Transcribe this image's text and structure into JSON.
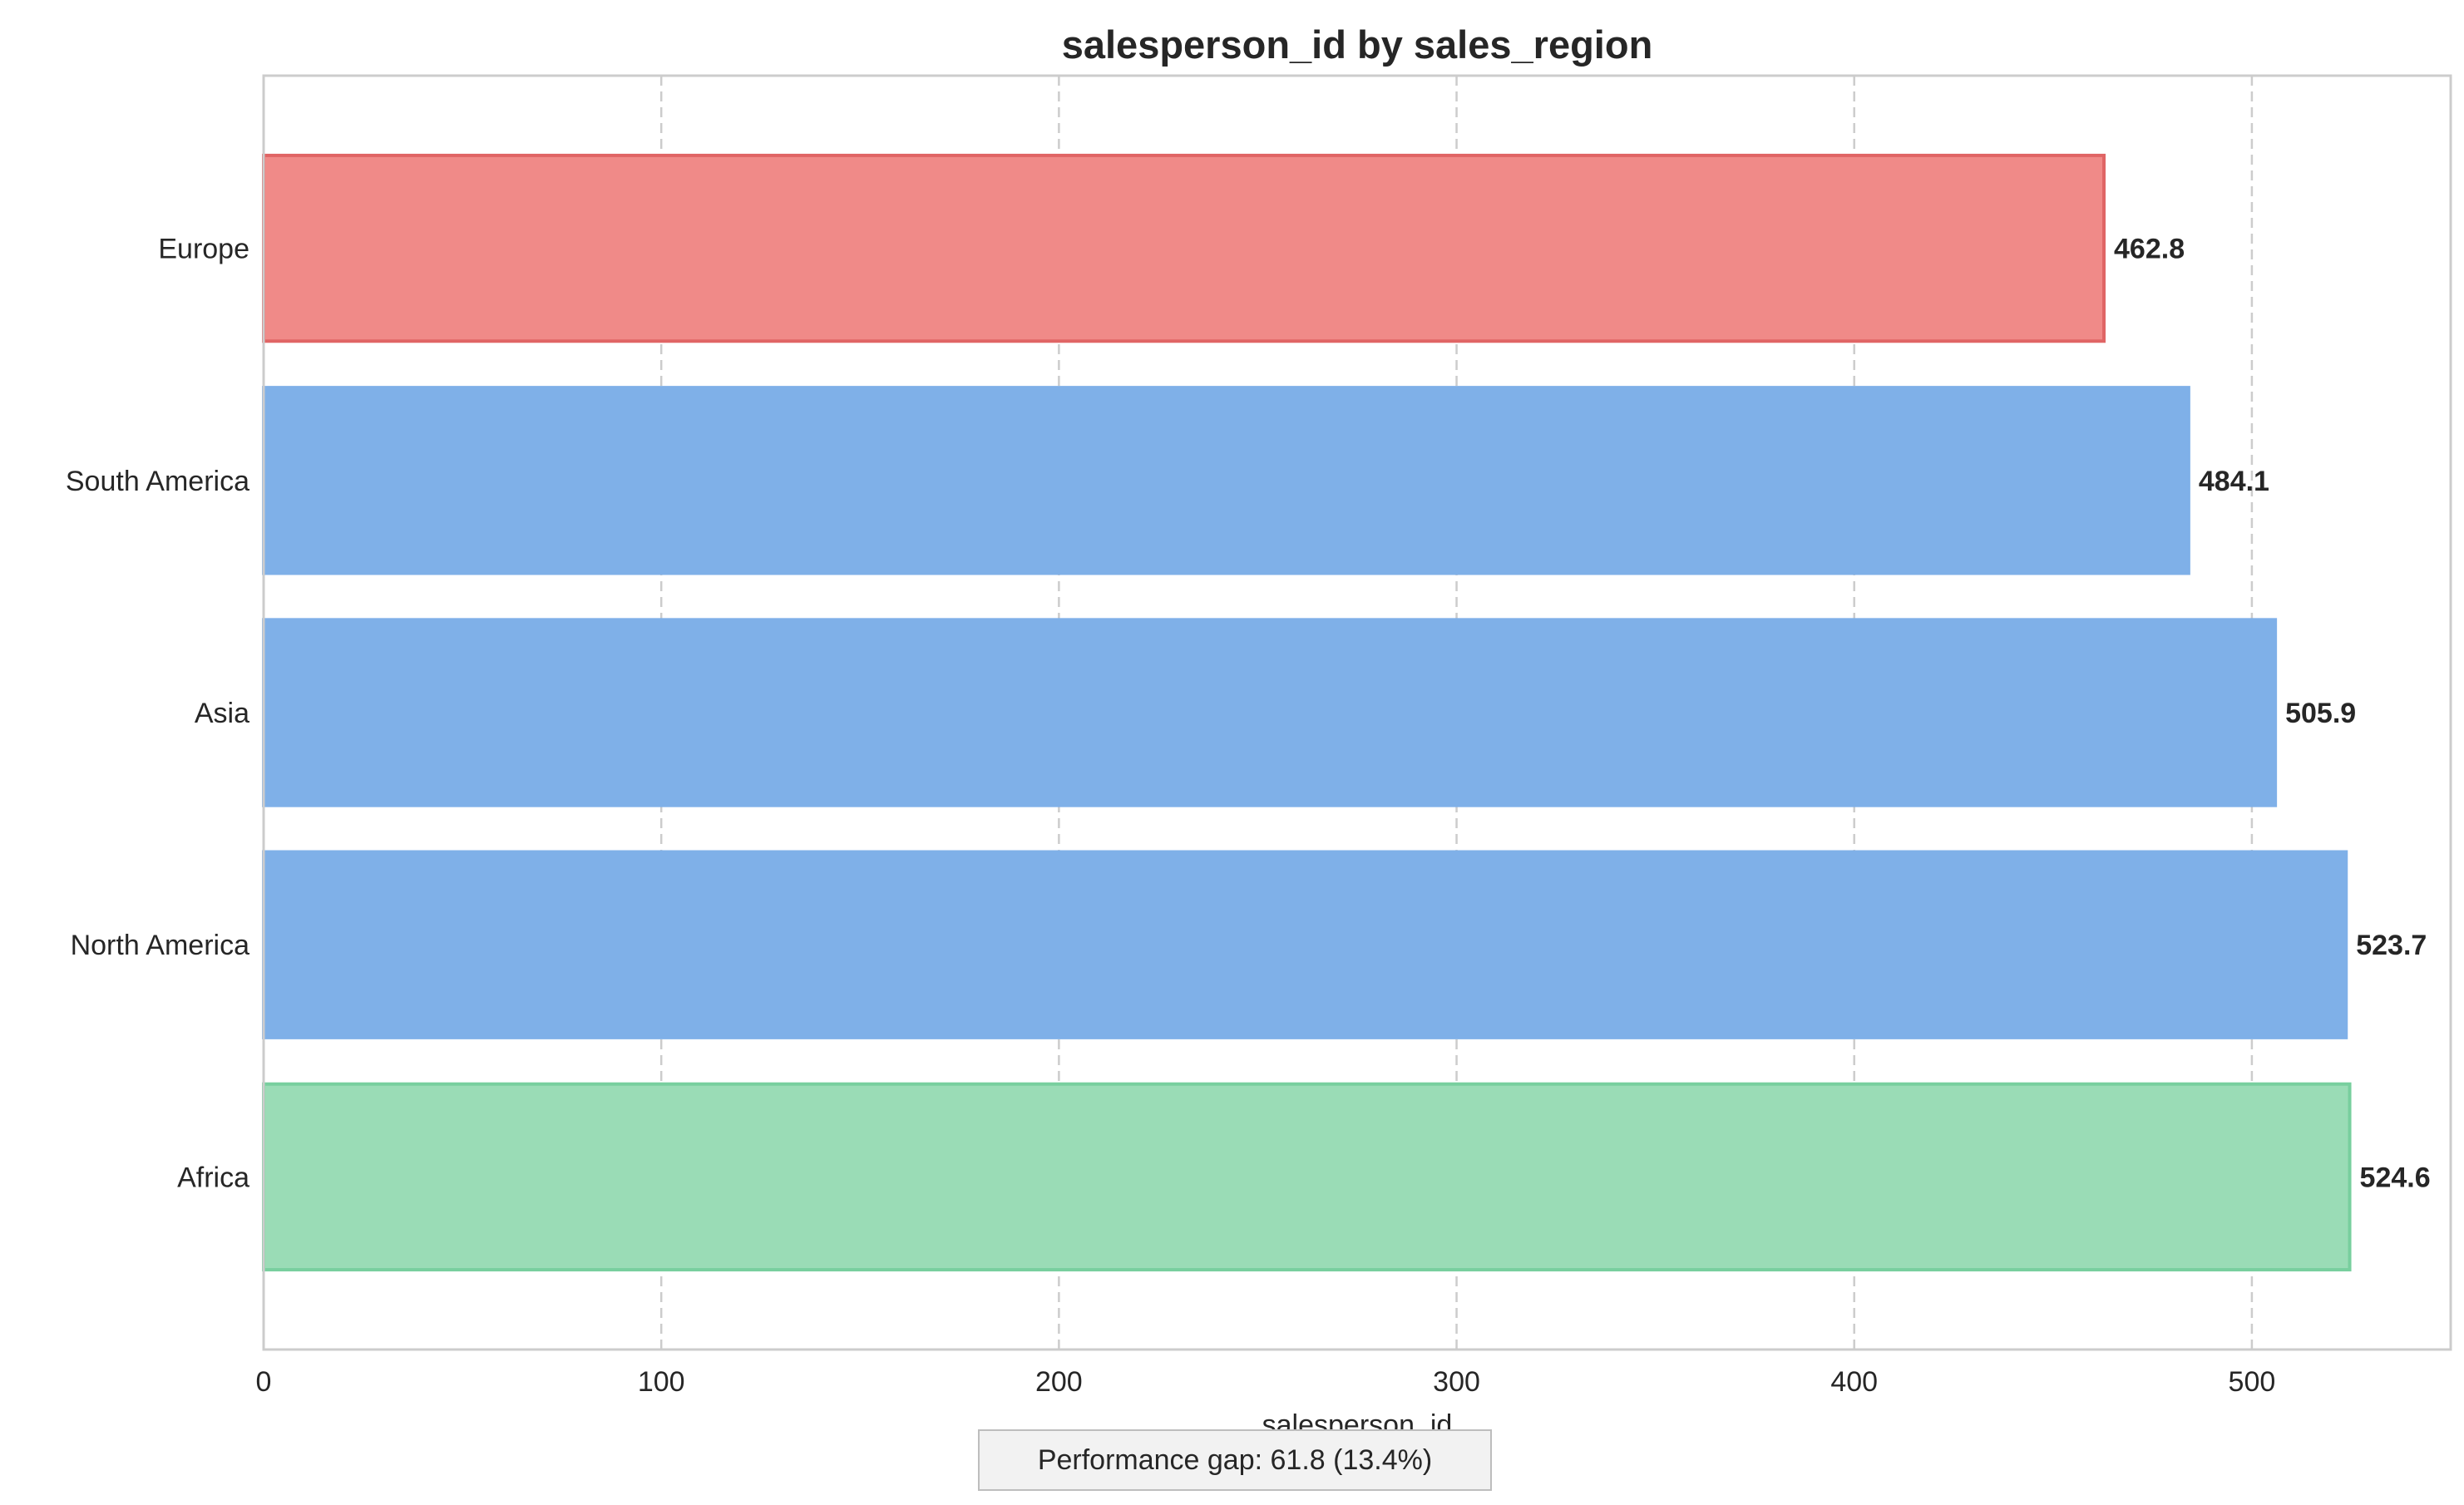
{
  "chart_data": {
    "type": "bar",
    "orientation": "horizontal",
    "title": "salesperson_id by sales_region",
    "xlabel": "salesperson_id",
    "ylabel": "",
    "xlim": [
      0,
      550
    ],
    "xticks": [
      0,
      100,
      200,
      300,
      400,
      500
    ],
    "grid": "x dashed",
    "categories": [
      "Europe",
      "South America",
      "Asia",
      "North America",
      "Africa"
    ],
    "values": [
      462.8,
      484.1,
      505.9,
      523.7,
      524.6
    ],
    "value_labels": [
      "462.8",
      "484.1",
      "505.9",
      "523.7",
      "524.6"
    ],
    "bar_colors": [
      "#f08a88",
      "#7fb0e8",
      "#7fb0e8",
      "#7fb0e8",
      "#9adcb6"
    ],
    "bar_edge_colors": [
      "#e06565",
      "#7fb0e8",
      "#7fb0e8",
      "#7fb0e8",
      "#78cf9e"
    ],
    "annotation": "Performance gap: 61.8 (13.4%)"
  }
}
